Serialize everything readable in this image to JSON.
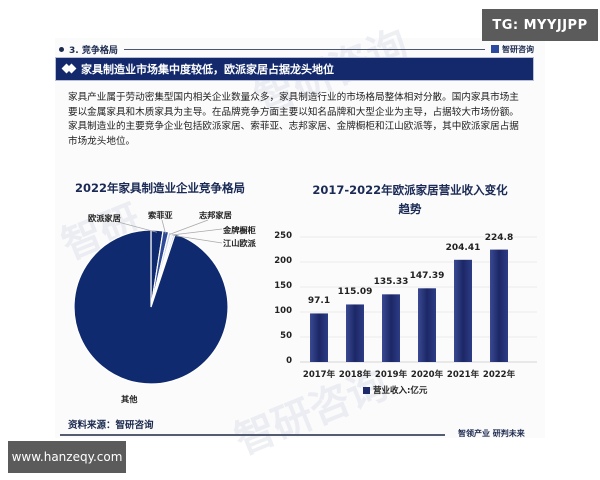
{
  "overlays": {
    "tg_badge": "TG: MYYJJPP",
    "url_badge": "www.hanzeqy.com"
  },
  "header": {
    "section": "3. 竞争格局",
    "brand": "智研咨询",
    "banner": "家具制造业市场集中度较低，欧派家居占据龙头地位"
  },
  "paragraph": "家具产业属于劳动密集型国内相关企业数量众多，家具制造行业的市场格局整体相对分散。国内家具市场主要以金属家具和木质家具为主导。在品牌竞争方面主要以知名品牌和大型企业为主导，占据较大市场份额。家具制造业的主要竞争企业包括欧派家居、索菲亚、志邦家居、金牌橱柜和江山欧派等，其中欧派家居占据市场龙头地位。",
  "footer": {
    "source": "资料来源：智研咨询",
    "slogan": "智领产业 研判未来"
  },
  "colors": {
    "navy": "#13296b",
    "pie_main": "#0f2a6e",
    "pie_light": "#c9d4ea",
    "bar": "#1f2a6b"
  },
  "chart_data": [
    {
      "type": "pie",
      "title": "2022年家具制造业企业竞争格局",
      "labels": [
        "欧派家居",
        "索菲亚",
        "志邦家居",
        "金牌橱柜",
        "江山欧派",
        "其他"
      ],
      "values": [
        2.5,
        1.2,
        0.6,
        0.4,
        0.4,
        94.9
      ],
      "slice_colors": [
        "#0f2a6e",
        "#2f4a96",
        "#c9d4ea",
        "#dfe6f3",
        "#b9c7e4",
        "#0f2a6e"
      ]
    },
    {
      "type": "bar",
      "title": "2017-2022年欧派家居营业收入变化趋势",
      "title_line1": "2017-2022年欧派家居营业收入变化",
      "title_line2": "趋势",
      "categories": [
        "2017年",
        "2018年",
        "2019年",
        "2020年",
        "2021年",
        "2022年"
      ],
      "series": [
        {
          "name": "营业收入:亿元",
          "values": [
            97.1,
            115.09,
            135.33,
            147.39,
            204.41,
            224.8
          ]
        }
      ],
      "value_labels": [
        "97.1",
        "115.09",
        "135.33",
        "147.39",
        "204.41",
        "224.8"
      ],
      "yticks": [
        "0",
        "50",
        "100",
        "150",
        "200",
        "250"
      ],
      "ylim": [
        0,
        250
      ],
      "grid": true,
      "legend_position": "bottom"
    }
  ]
}
